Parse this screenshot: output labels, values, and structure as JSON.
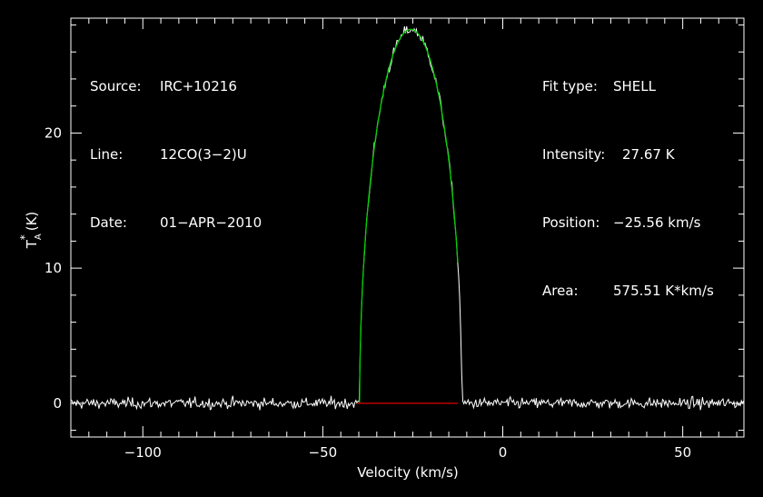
{
  "chart_data": {
    "type": "line",
    "xlabel": "Velocity (km/s)",
    "ylabel": "T",
    "ylabel_sub": "A",
    "ylabel_sup": "*",
    "ylabel_unit": "(K)",
    "xlim": [
      -120,
      67
    ],
    "ylim": [
      -2.5,
      28.5
    ],
    "x_ticks": [
      -100,
      -50,
      0,
      50
    ],
    "x_tick_labels": [
      "−100",
      "−50",
      "0",
      "50"
    ],
    "y_ticks": [
      0,
      10,
      20
    ],
    "y_tick_labels": [
      "0",
      "10",
      "20"
    ],
    "grid": false,
    "colors": {
      "background": "#000000",
      "frame": "#ffffff",
      "spectrum": "#ffffff",
      "fit": "#00cc00",
      "baseline": "#cc0000"
    },
    "fit": {
      "center": -25.56,
      "peak": 27.67,
      "half_width": 14.2,
      "horn": -0.05
    },
    "baseline": {
      "y": 0,
      "x_start": -40.5,
      "x_end": -12.5
    },
    "noise_rms": 0.35,
    "channel_width": 0.3
  },
  "info_left": [
    {
      "key": "Source:",
      "value": "IRC+10216"
    },
    {
      "key": "Line:",
      "value": "12CO(3−2)U"
    },
    {
      "key": "Date:",
      "value": "01−APR−2010"
    }
  ],
  "info_right": [
    {
      "key": "Fit type:",
      "value": "SHELL"
    },
    {
      "key": "Intensity:",
      "value": "27.67 K"
    },
    {
      "key": "Position:",
      "value": "−25.56 km/s"
    },
    {
      "key": "Area:",
      "value": "575.51 K*km/s"
    }
  ]
}
